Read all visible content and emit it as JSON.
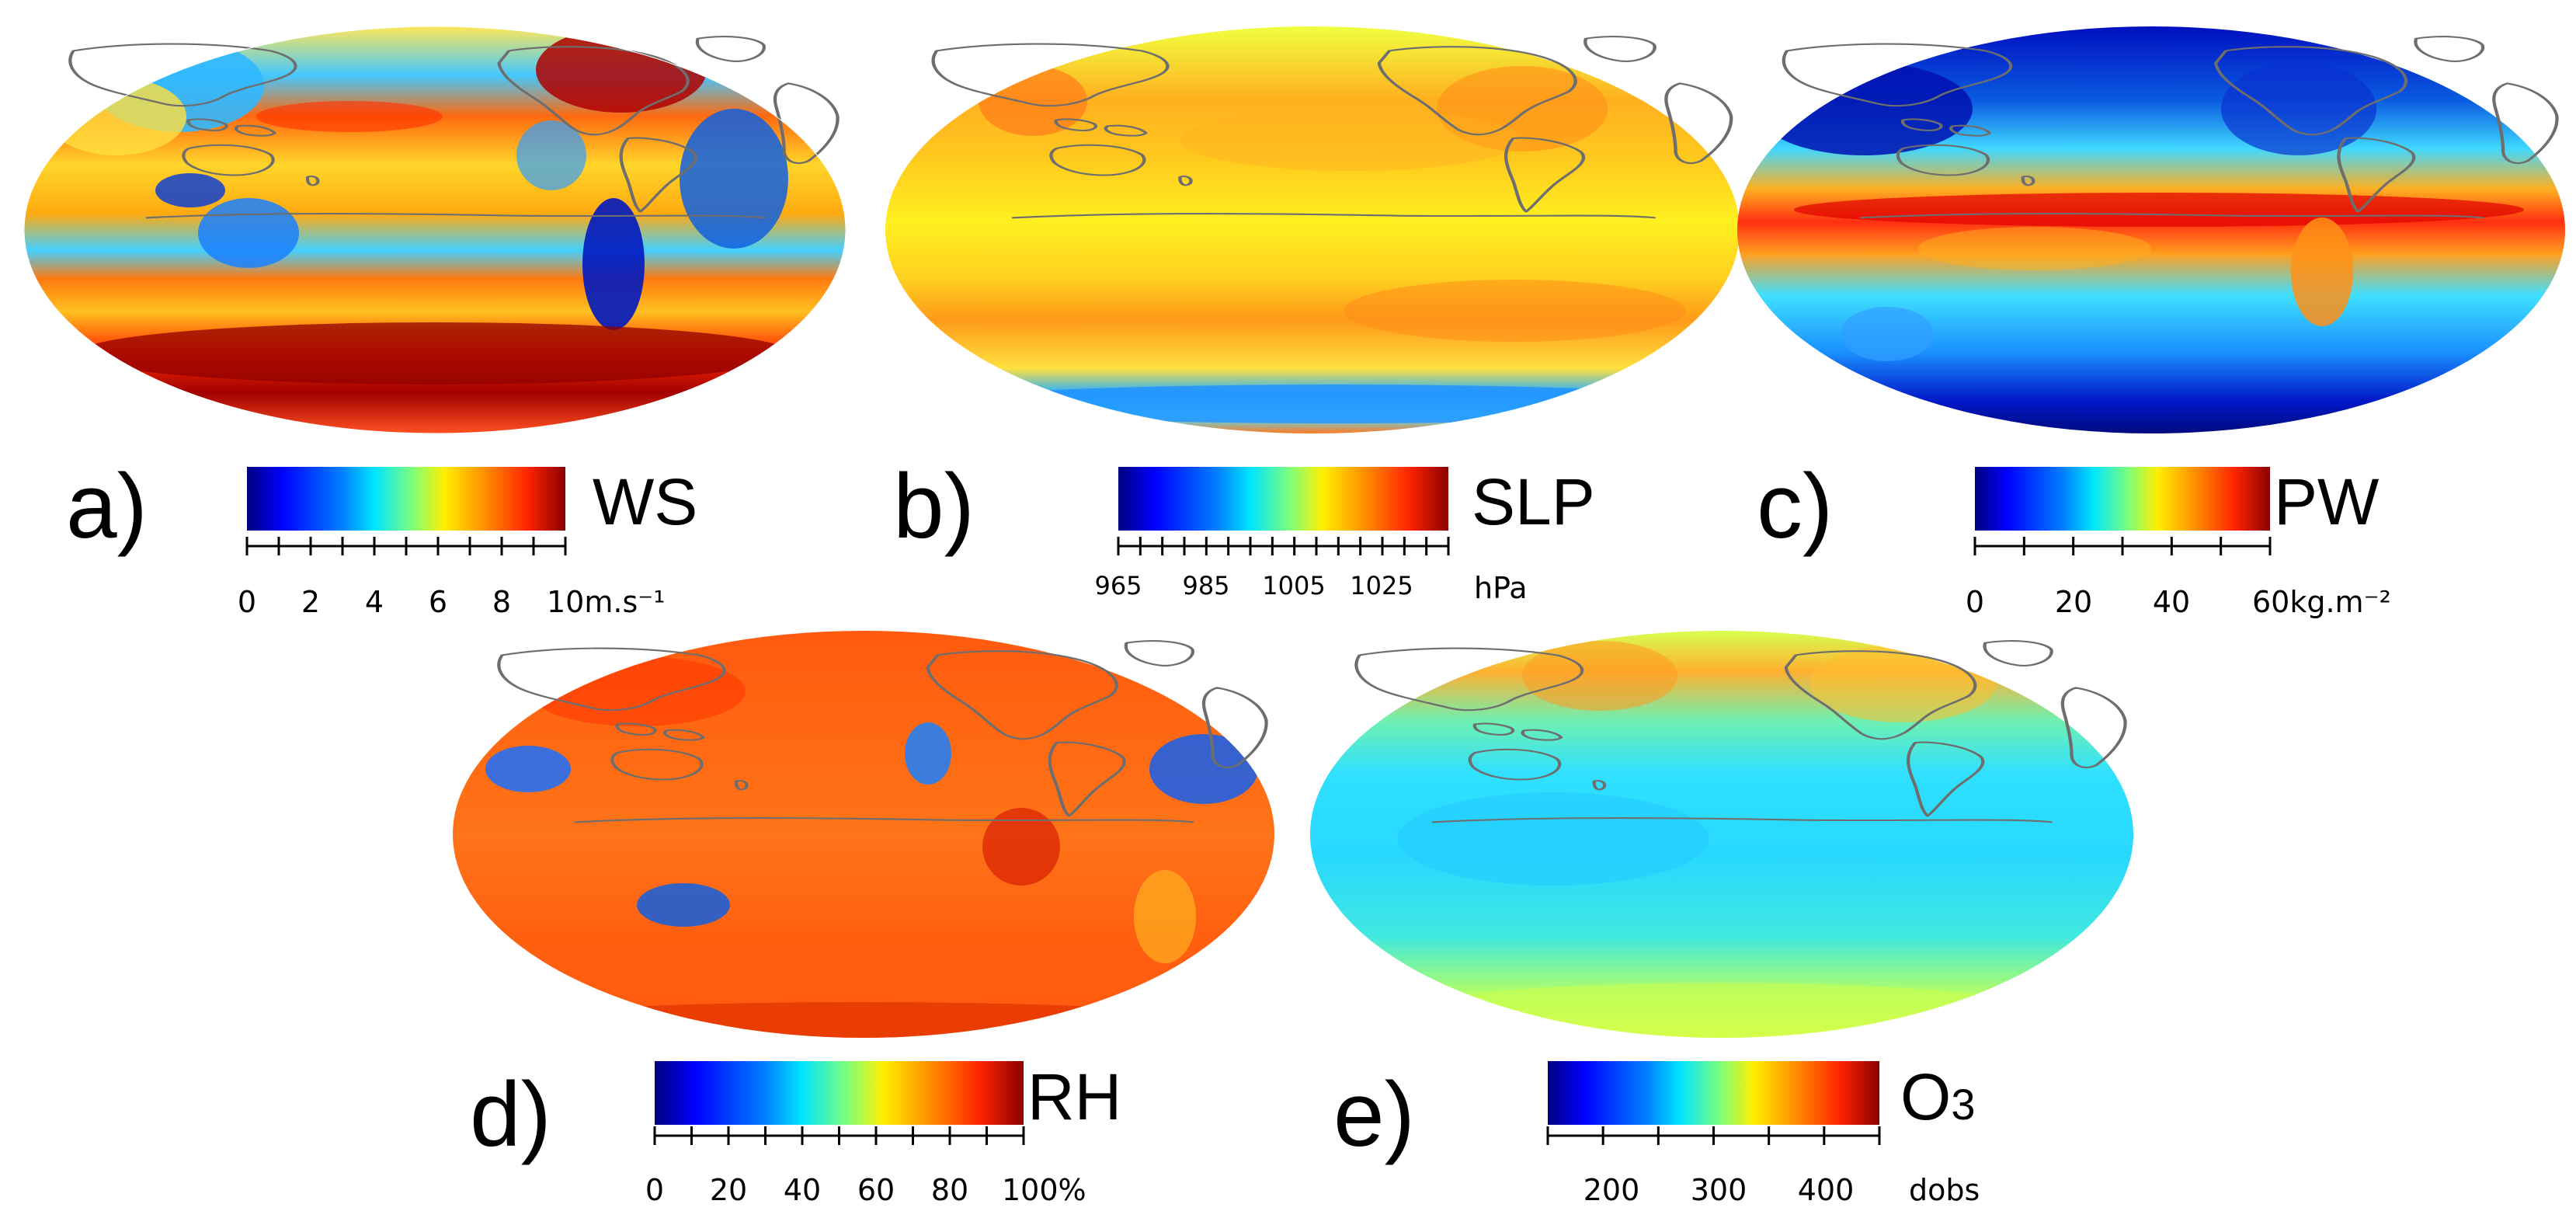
{
  "panels": {
    "a": {
      "letter": "a)",
      "variable": "WS",
      "ticks": [
        "0",
        "2",
        "4",
        "6",
        "8"
      ],
      "unit": "10m.s⁻¹",
      "range": [
        0,
        10
      ]
    },
    "b": {
      "letter": "b)",
      "variable": "SLP",
      "ticks": [
        "965",
        "985",
        "1005",
        "1025"
      ],
      "unit": "hPa",
      "range": [
        965,
        1040
      ]
    },
    "c": {
      "letter": "c)",
      "variable": "PW",
      "ticks": [
        "0",
        "20",
        "40"
      ],
      "unit": "60kg.m⁻²",
      "range": [
        0,
        60
      ]
    },
    "d": {
      "letter": "d)",
      "variable": "RH",
      "ticks": [
        "0",
        "20",
        "40",
        "60",
        "80"
      ],
      "unit": "100%",
      "range": [
        0,
        100
      ]
    },
    "e": {
      "letter": "e)",
      "variable": "O",
      "variable_sub": "3",
      "ticks": [
        "200",
        "300",
        "400"
      ],
      "unit": "dobs",
      "range": [
        140,
        450
      ]
    }
  },
  "colors": {
    "colormap": [
      "#00007f",
      "#0000ff",
      "#0080ff",
      "#00e5ff",
      "#7dff7a",
      "#ffef00",
      "#ff8c00",
      "#ff2400",
      "#8b0000"
    ],
    "coastline": "#6e6e6e"
  },
  "projection": "mollweide"
}
